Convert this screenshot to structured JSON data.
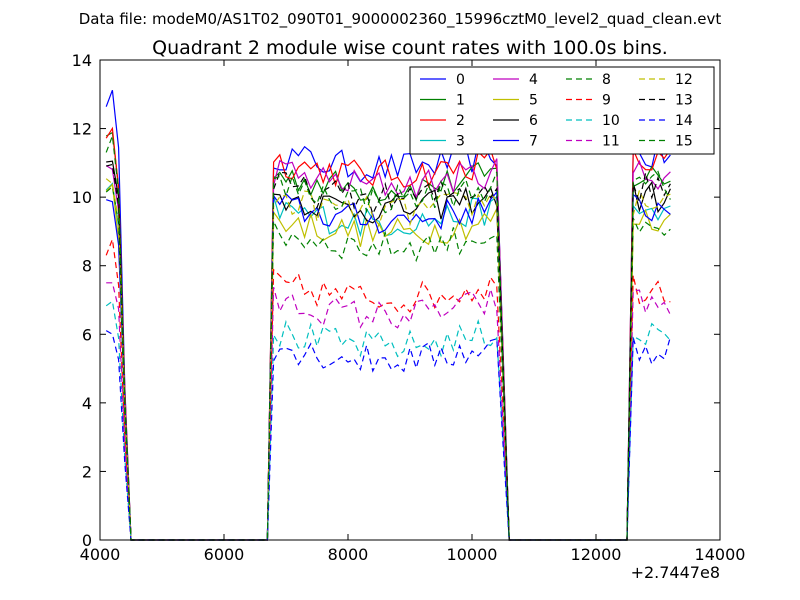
{
  "chart_data": {
    "type": "line",
    "suptitle": "Data file: modeM0/AS1T02_090T01_9000002360_15996cztM0_level2_quad_clean.evt",
    "title": "Quadrant 2 module wise count rates with 100.0s bins.",
    "xlabel": "",
    "ylabel": "",
    "x_offset_label": "+2.7447e8",
    "xlim": [
      4000,
      14000
    ],
    "ylim": [
      0,
      14
    ],
    "xticks": [
      4000,
      6000,
      8000,
      10000,
      12000,
      14000
    ],
    "xtick_labels": [
      "4000",
      "6000",
      "8000",
      "10000",
      "12000",
      "14000"
    ],
    "yticks": [
      0,
      2,
      4,
      6,
      8,
      10,
      12,
      14
    ],
    "ytick_labels": [
      "0",
      "2",
      "4",
      "6",
      "8",
      "10",
      "12",
      "14"
    ],
    "grid": false,
    "legend_position": "top-right",
    "bin_width": 100,
    "x_segments": [
      [
        4100,
        4800
      ],
      [
        6700,
        10600
      ],
      [
        12500,
        13200
      ]
    ],
    "gap_zero_ranges": [
      [
        4800,
        6700
      ],
      [
        10600,
        12500
      ]
    ],
    "series": [
      {
        "name": "0",
        "color": "#0000ff",
        "dash": "solid",
        "level": 11.2,
        "first": 12.8
      },
      {
        "name": "1",
        "color": "#008000",
        "dash": "solid",
        "level": 10.6,
        "first": 11.7
      },
      {
        "name": "2",
        "color": "#ff0000",
        "dash": "solid",
        "level": 11.0,
        "first": 11.8
      },
      {
        "name": "3",
        "color": "#00bfbf",
        "dash": "solid",
        "level": 9.6,
        "first": 10.2
      },
      {
        "name": "4",
        "color": "#bf00bf",
        "dash": "solid",
        "level": 10.7,
        "first": 10.8
      },
      {
        "name": "5",
        "color": "#bfbf00",
        "dash": "solid",
        "level": 9.3,
        "first": 10.1
      },
      {
        "name": "6",
        "color": "#000000",
        "dash": "solid",
        "level": 10.0,
        "first": 11.2
      },
      {
        "name": "7",
        "color": "#0000ff",
        "dash": "solid",
        "level": 9.7,
        "first": 9.8
      },
      {
        "name": "8",
        "color": "#008000",
        "dash": "dashed",
        "level": 8.9,
        "first": 10.3
      },
      {
        "name": "9",
        "color": "#ff0000",
        "dash": "dashed",
        "level": 7.4,
        "first": 8.4
      },
      {
        "name": "10",
        "color": "#00bfbf",
        "dash": "dashed",
        "level": 6.0,
        "first": 6.9
      },
      {
        "name": "11",
        "color": "#bf00bf",
        "dash": "dashed",
        "level": 6.9,
        "first": 7.5
      },
      {
        "name": "12",
        "color": "#bfbf00",
        "dash": "dashed",
        "level": 9.9,
        "first": 10.4
      },
      {
        "name": "13",
        "color": "#000000",
        "dash": "dashed",
        "level": 10.3,
        "first": 11.0
      },
      {
        "name": "14",
        "color": "#0000ff",
        "dash": "dashed",
        "level": 5.6,
        "first": 6.1
      },
      {
        "name": "15",
        "color": "#008000",
        "dash": "dashed",
        "level": 10.3,
        "first": 11.5
      }
    ]
  }
}
